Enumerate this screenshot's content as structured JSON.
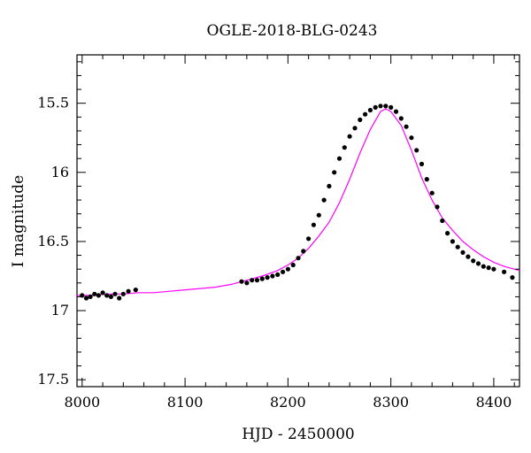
{
  "chart_data": {
    "type": "scatter",
    "title": "OGLE-2018-BLG-0243",
    "xlabel": "HJD - 2450000",
    "ylabel": "I magnitude",
    "xlim": [
      7995,
      8425
    ],
    "ylim": [
      17.55,
      15.15
    ],
    "y_inverted": true,
    "x_ticks": [
      8000,
      8100,
      8200,
      8300,
      8400
    ],
    "x_tick_labels": [
      "8000",
      "8100",
      "8200",
      "8300",
      "8400"
    ],
    "y_ticks": [
      15.5,
      16,
      16.5,
      17,
      17.5
    ],
    "y_tick_labels": [
      "15.5",
      "16",
      "16.5",
      "17",
      "17.5"
    ],
    "grid": false,
    "colors": {
      "data": "#000000",
      "model": "#ff00ff"
    },
    "series": [
      {
        "kind": "points",
        "x": [
          8000,
          8004,
          8008,
          8012,
          8016,
          8020,
          8024,
          8028,
          8032,
          8036,
          8040,
          8045,
          8052,
          8155,
          8160,
          8165,
          8170,
          8175,
          8180,
          8185,
          8190,
          8195,
          8200,
          8205,
          8210,
          8215,
          8220,
          8225,
          8230,
          8235,
          8240,
          8245,
          8250,
          8255,
          8260,
          8265,
          8270,
          8275,
          8280,
          8285,
          8290,
          8295,
          8300,
          8305,
          8310,
          8315,
          8320,
          8325,
          8330,
          8335,
          8340,
          8345,
          8350,
          8355,
          8360,
          8365,
          8370,
          8375,
          8380,
          8385,
          8390,
          8395,
          8400,
          8410,
          8418
        ],
        "y": [
          16.89,
          16.91,
          16.9,
          16.88,
          16.89,
          16.87,
          16.89,
          16.9,
          16.88,
          16.91,
          16.88,
          16.86,
          16.85,
          16.79,
          16.8,
          16.78,
          16.78,
          16.77,
          16.76,
          16.75,
          16.74,
          16.72,
          16.7,
          16.67,
          16.62,
          16.57,
          16.48,
          16.38,
          16.31,
          16.2,
          16.1,
          16.0,
          15.9,
          15.82,
          15.74,
          15.68,
          15.62,
          15.58,
          15.55,
          15.53,
          15.52,
          15.52,
          15.53,
          15.56,
          15.61,
          15.67,
          15.75,
          15.84,
          15.94,
          16.05,
          16.15,
          16.25,
          16.35,
          16.44,
          16.5,
          16.54,
          16.58,
          16.61,
          16.64,
          16.66,
          16.68,
          16.69,
          16.7,
          16.72,
          16.76
        ]
      },
      {
        "kind": "model",
        "x": [
          7995,
          8010,
          8025,
          8040,
          8055,
          8070,
          8085,
          8100,
          8115,
          8130,
          8145,
          8160,
          8175,
          8190,
          8200,
          8210,
          8220,
          8230,
          8240,
          8250,
          8260,
          8270,
          8280,
          8290,
          8295,
          8300,
          8310,
          8320,
          8330,
          8340,
          8350,
          8360,
          8370,
          8380,
          8390,
          8400,
          8410,
          8425
        ],
        "y": [
          16.89,
          16.89,
          16.88,
          16.88,
          16.87,
          16.87,
          16.86,
          16.85,
          16.84,
          16.83,
          16.81,
          16.78,
          16.75,
          16.71,
          16.67,
          16.62,
          16.55,
          16.46,
          16.36,
          16.22,
          16.05,
          15.86,
          15.69,
          15.56,
          15.54,
          15.56,
          15.66,
          15.84,
          16.04,
          16.2,
          16.33,
          16.42,
          16.5,
          16.56,
          16.61,
          16.65,
          16.68,
          16.71
        ]
      }
    ]
  }
}
